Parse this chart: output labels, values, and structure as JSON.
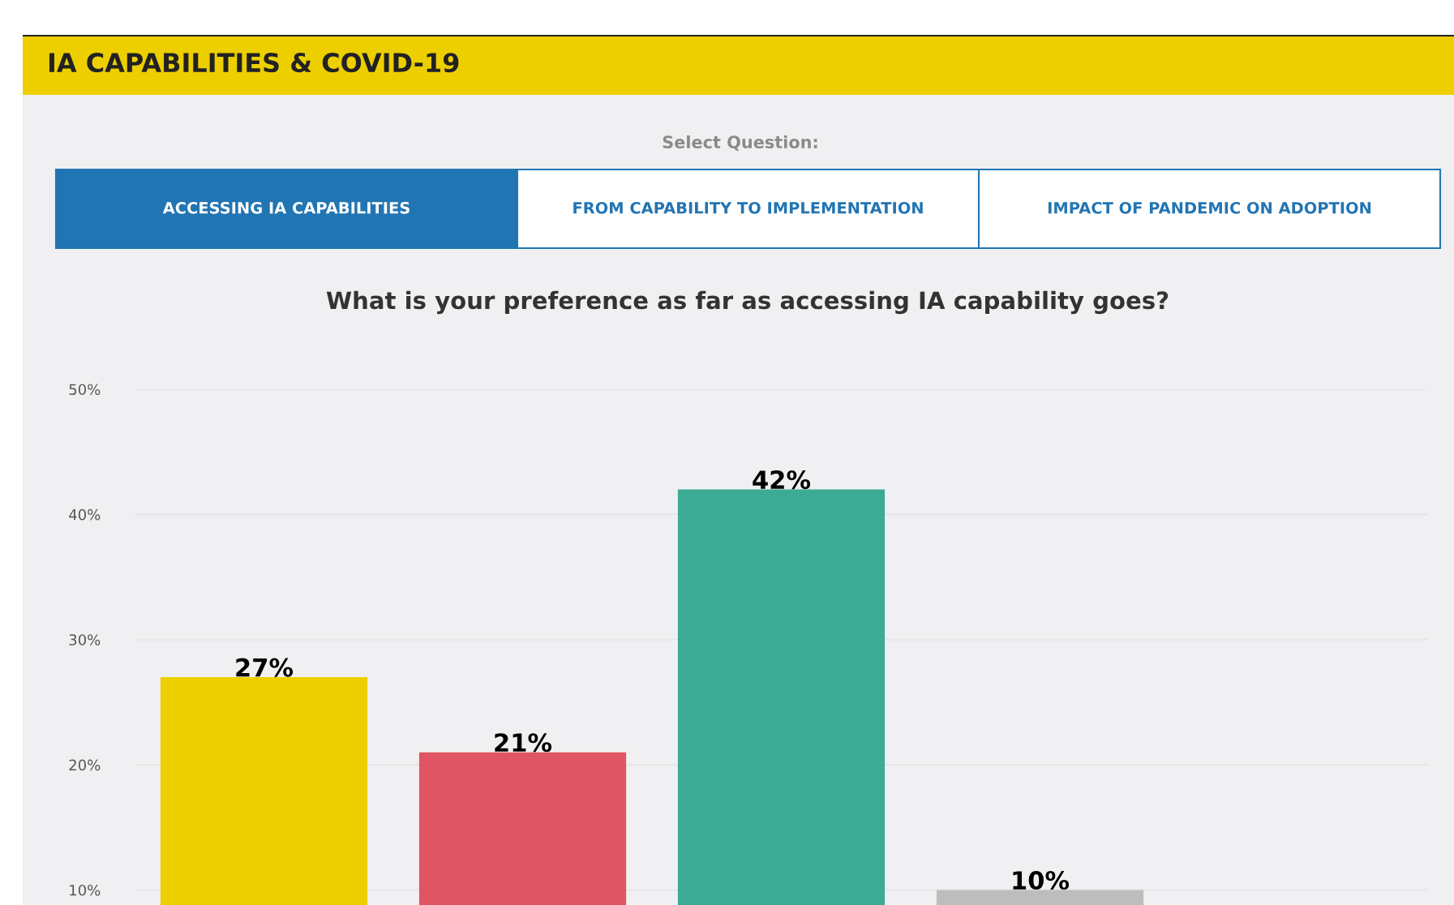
{
  "chart_data": {
    "type": "bar",
    "title": "IA CAPABILITIES & COVID-19",
    "subtitle": "What is your preference as far as accessing IA capability goes?",
    "annotations": [
      "Select Question:",
      "ACCESSING IA CAPABILITIES",
      "FROM CAPABILITY TO IMPLEMENTATION",
      "IMPACT OF PANDEMIC ON ADOPTION"
    ],
    "categories": [
      null,
      null,
      null,
      null
    ],
    "values": [
      27,
      21,
      42,
      10
    ],
    "colors": [
      "#edcf00",
      "#e05563",
      "#3daa96",
      "#bdbdbd"
    ],
    "value_labels": [
      "27%",
      "21%",
      "42%",
      "10%"
    ],
    "ylim": [
      8.8,
      50
    ],
    "yticks": [
      {
        "value": 10,
        "label": "10%"
      },
      {
        "value": 20,
        "label": "20%"
      },
      {
        "value": 30,
        "label": "30%"
      },
      {
        "value": 40,
        "label": "40%"
      },
      {
        "value": 50,
        "label": "50%"
      }
    ],
    "grid": "y"
  }
}
